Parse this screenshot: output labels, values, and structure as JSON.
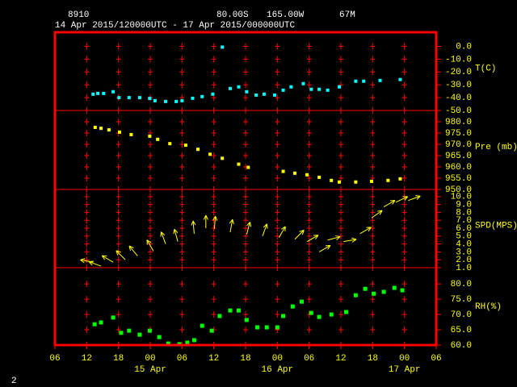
{
  "header": {
    "station": "8910",
    "latitude": "80.00S",
    "longitude": "165.00W",
    "elevation": "67M",
    "period": "14 Apr 2015/120000UTC - 17 Apr 2015/000000UTC"
  },
  "page_number": "2",
  "x_axis": {
    "xlim": [
      0,
      72
    ],
    "xticks": [
      {
        "value": 0,
        "label": "06"
      },
      {
        "value": 6,
        "label": "12"
      },
      {
        "value": 12,
        "label": "18"
      },
      {
        "value": 18,
        "label": "00"
      },
      {
        "value": 24,
        "label": "06"
      },
      {
        "value": 30,
        "label": "12"
      },
      {
        "value": 36,
        "label": "18"
      },
      {
        "value": 42,
        "label": "00"
      },
      {
        "value": 48,
        "label": "06"
      },
      {
        "value": 54,
        "label": "12"
      },
      {
        "value": 60,
        "label": "18"
      },
      {
        "value": 66,
        "label": "00"
      },
      {
        "value": 72,
        "label": "06"
      }
    ],
    "dates": [
      {
        "value": 18,
        "label": "15 Apr"
      },
      {
        "value": 42,
        "label": "16 Apr"
      },
      {
        "value": 66,
        "label": "17 Apr"
      }
    ]
  },
  "chart_data": [
    {
      "type": "scatter",
      "label": "T(C)",
      "color": "#00ffff",
      "x": [
        7.2,
        8.1,
        9.2,
        11.0,
        12.1,
        14.0,
        16.0,
        17.9,
        18.9,
        20.9,
        22.9,
        24.0,
        26.0,
        27.8,
        29.8,
        31.6,
        33.1,
        34.7,
        36.2,
        38.0,
        39.5,
        41.5,
        43.1,
        44.6,
        46.9,
        48.4,
        49.9,
        51.5,
        53.7,
        56.8,
        58.3,
        61.4,
        65.2
      ],
      "values": [
        -37.3,
        -36.7,
        -36.7,
        -35.4,
        -40,
        -40,
        -40,
        -40.6,
        -42.4,
        -43,
        -43,
        -42.4,
        -40.5,
        -39.2,
        -37.3,
        -0.6,
        -32.9,
        -31.6,
        -35.4,
        -38,
        -37.3,
        -38,
        -34.2,
        -31.6,
        -29.1,
        -33.5,
        -33.5,
        -34.2,
        -31.6,
        -27.2,
        -27.2,
        -26.6,
        -25.9
      ],
      "ylim": [
        -50,
        11
      ],
      "yticks": [
        {
          "value": 0,
          "label": "0.0"
        },
        {
          "value": -10,
          "label": "-10.0"
        },
        {
          "value": -20,
          "label": "-20.0"
        },
        {
          "value": -30,
          "label": "-30.0"
        },
        {
          "value": -40,
          "label": "-40.0"
        },
        {
          "value": -50,
          "label": "-50.0"
        }
      ]
    },
    {
      "type": "scatter",
      "label": "Pre (mb)",
      "color": "#ffff00",
      "x": [
        7.6,
        8.7,
        10.2,
        12.2,
        14.4,
        17.9,
        19.4,
        21.7,
        24.7,
        27.0,
        29.3,
        31.6,
        34.7,
        36.5,
        43.1,
        45.3,
        47.6,
        49.9,
        52.2,
        53.7,
        56.8,
        59.8,
        62.9,
        65.2
      ],
      "values": [
        977.5,
        977.1,
        976.4,
        975.4,
        974.3,
        973.6,
        972.2,
        970.3,
        969.6,
        967.8,
        965.6,
        963.8,
        961.2,
        959.8,
        958.0,
        957.2,
        956.5,
        955.4,
        954.0,
        953.3,
        953.3,
        953.6,
        954.0,
        954.7
      ],
      "ylim": [
        950,
        985
      ],
      "yticks": [
        {
          "value": 980,
          "label": "980.0"
        },
        {
          "value": 975,
          "label": "975.0"
        },
        {
          "value": 970,
          "label": "970.0"
        },
        {
          "value": 965,
          "label": "965.0"
        },
        {
          "value": 960,
          "label": "960.0"
        },
        {
          "value": 955,
          "label": "955.0"
        },
        {
          "value": 950,
          "label": "950.0"
        }
      ]
    },
    {
      "type": "vector",
      "label": "SPD(MPS)",
      "color": "#ffff00",
      "x": [
        7.2,
        8.7,
        11.0,
        13.3,
        15.6,
        18.6,
        20.9,
        23.2,
        26.3,
        28.5,
        30.1,
        33.1,
        36.2,
        39.2,
        42.3,
        45.3,
        47.6,
        49.9,
        51.5,
        54.5,
        57.6,
        59.8,
        62.1,
        64.4,
        66.7
      ],
      "values": [
        1.7,
        1.2,
        1.7,
        2.0,
        2.5,
        3.1,
        4.0,
        4.3,
        5.3,
        6.0,
        5.9,
        5.5,
        5.2,
        5.0,
        4.8,
        4.6,
        4.3,
        3.0,
        4.5,
        4.3,
        5.3,
        7.3,
        8.7,
        9.3,
        9.5
      ],
      "directions": [
        280,
        290,
        300,
        315,
        320,
        330,
        340,
        345,
        355,
        0,
        5,
        10,
        15,
        20,
        30,
        45,
        60,
        60,
        75,
        80,
        60,
        55,
        60,
        65,
        70
      ],
      "ylim": [
        1,
        10.9
      ],
      "yticks": [
        {
          "value": 10,
          "label": "10.0"
        },
        {
          "value": 9,
          "label": "9.0"
        },
        {
          "value": 8,
          "label": "8.0"
        },
        {
          "value": 7,
          "label": "7.0"
        },
        {
          "value": 6,
          "label": "6.0"
        },
        {
          "value": 5,
          "label": "5.0"
        },
        {
          "value": 4,
          "label": "4.0"
        },
        {
          "value": 3,
          "label": "3.0"
        },
        {
          "value": 2,
          "label": "2.0"
        },
        {
          "value": 1,
          "label": "1.0"
        }
      ]
    },
    {
      "type": "scatter",
      "label": "RH(%)",
      "color": "#00ff00",
      "x": [
        7.5,
        8.7,
        11.0,
        12.5,
        14.0,
        16.0,
        17.9,
        19.7,
        21.4,
        23.5,
        25.0,
        26.3,
        27.8,
        29.6,
        31.1,
        33.1,
        34.7,
        36.2,
        38.2,
        40.0,
        42.0,
        43.1,
        44.9,
        46.6,
        48.4,
        49.9,
        52.2,
        55.0,
        56.8,
        58.6,
        60.2,
        62.1,
        64.1,
        65.6
      ],
      "values": [
        66.8,
        67.4,
        69.0,
        64.0,
        64.7,
        63.4,
        64.7,
        62.6,
        60.5,
        60.3,
        60.8,
        61.6,
        66.3,
        64.7,
        69.5,
        71.3,
        71.3,
        68.2,
        65.8,
        65.8,
        65.8,
        69.5,
        72.6,
        74.2,
        70.5,
        69.2,
        70.0,
        70.8,
        76.3,
        78.4,
        76.8,
        77.4,
        78.7,
        77.9
      ],
      "ylim": [
        60,
        85.3
      ],
      "yticks": [
        {
          "value": 80,
          "label": "80.0"
        },
        {
          "value": 75,
          "label": "75.0"
        },
        {
          "value": 70,
          "label": "70.0"
        },
        {
          "value": 65,
          "label": "65.0"
        },
        {
          "value": 60,
          "label": "60.0"
        }
      ]
    }
  ]
}
